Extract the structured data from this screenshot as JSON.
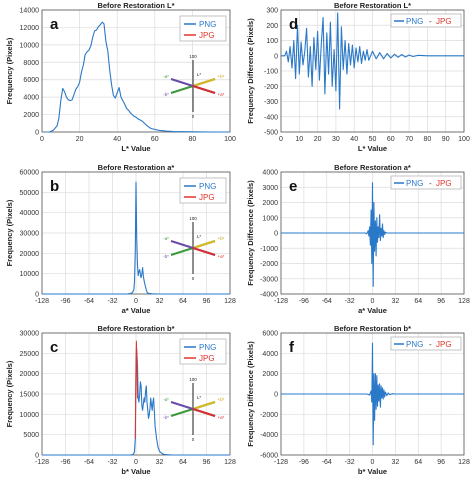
{
  "colors": {
    "png": "#2a78c8",
    "jpg": "#e0342a",
    "diff": "#2a78c8",
    "grid": "#dcdcdc",
    "frame": "#555555"
  },
  "chart_data": [
    {
      "id": "a",
      "type": "line",
      "title": "Before Restoration L*",
      "xlabel": "L* Value",
      "ylabel": "Frequency (Pixels)",
      "xlim": [
        0,
        100
      ],
      "ylim": [
        0,
        14000
      ],
      "xticks": [
        0,
        20,
        40,
        60,
        80,
        100
      ],
      "yticks": [
        0,
        2000,
        4000,
        6000,
        8000,
        10000,
        12000,
        14000
      ],
      "legend": [
        "PNG",
        "JPG"
      ],
      "legend_position": "top-right",
      "has_color_wheel": true,
      "series": [
        {
          "name": "PNG",
          "x": [
            2,
            4,
            6,
            8,
            9,
            10,
            11,
            12,
            13,
            14,
            15,
            16,
            17,
            18,
            19,
            20,
            21,
            22,
            23,
            24,
            25,
            26,
            27,
            28,
            29,
            30,
            31,
            32,
            33,
            34,
            35,
            36,
            37,
            38,
            39,
            40,
            41,
            42,
            43,
            44,
            45,
            46,
            47,
            48,
            49,
            50,
            51,
            52,
            53,
            54,
            55,
            56,
            58,
            60,
            62,
            64,
            66,
            68,
            70,
            75,
            80,
            85,
            90,
            95,
            100
          ],
          "y": [
            0,
            0,
            200,
            700,
            1600,
            3600,
            5000,
            4600,
            4000,
            3700,
            3600,
            3700,
            4300,
            4900,
            5200,
            5700,
            6900,
            7700,
            8900,
            9200,
            9400,
            9900,
            10900,
            11600,
            11700,
            12100,
            12300,
            12600,
            12400,
            10400,
            9300,
            7100,
            5400,
            4200,
            3900,
            4500,
            5100,
            4000,
            3600,
            3200,
            2700,
            2500,
            2200,
            2000,
            1800,
            1700,
            1500,
            1400,
            1300,
            1100,
            900,
            700,
            400,
            300,
            200,
            150,
            100,
            80,
            50,
            30,
            20,
            10,
            5,
            0,
            0
          ]
        }
      ]
    },
    {
      "id": "b",
      "type": "line",
      "title": "Before Restoration a*",
      "xlabel": "a* Value",
      "ylabel": "Frequency (Pixels)",
      "xlim": [
        -128,
        128
      ],
      "ylim": [
        0,
        60000
      ],
      "xticks": [
        -128,
        -96,
        -64,
        -32,
        0,
        32,
        64,
        96,
        128
      ],
      "yticks": [
        0,
        10000,
        20000,
        30000,
        40000,
        50000,
        60000
      ],
      "legend": [
        "PNG",
        "JPG"
      ],
      "legend_position": "top-right",
      "has_color_wheel": true,
      "series": [
        {
          "name": "PNG",
          "x": [
            -128,
            -20,
            -12,
            -8,
            -5,
            -3,
            -2,
            -1,
            0,
            1,
            2,
            3,
            4,
            5,
            6,
            7,
            8,
            9,
            10,
            11,
            12,
            13,
            14,
            15,
            16,
            18,
            22,
            30,
            128
          ],
          "y": [
            0,
            0,
            0,
            200,
            600,
            2000,
            6000,
            22000,
            55000,
            28000,
            14000,
            9000,
            11000,
            12000,
            9500,
            8000,
            10000,
            13000,
            9000,
            6500,
            5000,
            3500,
            2000,
            1000,
            500,
            300,
            100,
            0,
            0
          ]
        }
      ]
    },
    {
      "id": "c",
      "type": "line",
      "title": "Before Restoration b*",
      "xlabel": "b* Value",
      "ylabel": "Frequency (Pixels)",
      "xlim": [
        -128,
        128
      ],
      "ylim": [
        0,
        30000
      ],
      "xticks": [
        -128,
        -96,
        -64,
        -32,
        0,
        32,
        64,
        96,
        128
      ],
      "yticks": [
        0,
        5000,
        10000,
        15000,
        20000,
        25000,
        30000
      ],
      "legend": [
        "PNG",
        "JPG"
      ],
      "legend_position": "top-right",
      "has_color_wheel": true,
      "series": [
        {
          "name": "PNG",
          "x": [
            -128,
            -8,
            -4,
            -2,
            -1,
            0,
            1,
            2,
            3,
            4,
            5,
            6,
            7,
            8,
            9,
            10,
            11,
            12,
            13,
            14,
            15,
            16,
            17,
            18,
            19,
            20,
            21,
            22,
            23,
            24,
            25,
            26,
            28,
            30,
            32,
            36,
            40,
            50,
            128
          ],
          "y": [
            0,
            0,
            100,
            800,
            4000,
            20000,
            26000,
            22000,
            14000,
            13000,
            15000,
            18000,
            17000,
            12000,
            11000,
            12500,
            14000,
            13000,
            15500,
            17000,
            13000,
            11000,
            9000,
            9800,
            11500,
            14000,
            12500,
            11000,
            13000,
            14000,
            10500,
            7000,
            4000,
            2000,
            900,
            300,
            100,
            0,
            0
          ]
        },
        {
          "name": "JPG",
          "x": [
            -1,
            0,
            0.6,
            1.2,
            2
          ],
          "y": [
            4000,
            24000,
            28000,
            22000,
            14000
          ]
        }
      ]
    },
    {
      "id": "d",
      "type": "line",
      "title": "Before Restoration L*",
      "xlabel": "L* Value",
      "ylabel": "Frequency Difference (Pixels)",
      "xlim": [
        0,
        100
      ],
      "ylim": [
        -500,
        300
      ],
      "xticks": [
        0,
        10,
        20,
        30,
        40,
        50,
        60,
        70,
        80,
        90,
        100
      ],
      "yticks": [
        -500,
        -400,
        -300,
        -200,
        -100,
        0,
        100,
        200,
        300
      ],
      "legend": [
        "PNG",
        "-",
        "JPG"
      ],
      "legend_position": "top-right",
      "series": [
        {
          "name": "PNG - JPG",
          "x": [
            0,
            2,
            3,
            4,
            5,
            6,
            7,
            8,
            9,
            10,
            11,
            12,
            13,
            14,
            15,
            16,
            17,
            18,
            19,
            20,
            21,
            22,
            23,
            24,
            25,
            26,
            27,
            28,
            29,
            30,
            31,
            32,
            33,
            34,
            35,
            36,
            37,
            38,
            39,
            40,
            41,
            42,
            43,
            44,
            45,
            46,
            47,
            48,
            50,
            52,
            54,
            56,
            58,
            60,
            62,
            64,
            66,
            68,
            70,
            72,
            75,
            80,
            85,
            90,
            95,
            100
          ],
          "y": [
            0,
            0,
            30,
            -40,
            60,
            -80,
            100,
            -150,
            200,
            -120,
            90,
            -60,
            30,
            180,
            -140,
            60,
            -200,
            120,
            -90,
            160,
            -160,
            80,
            250,
            -250,
            150,
            -120,
            220,
            -200,
            40,
            -230,
            280,
            -350,
            190,
            -90,
            100,
            -120,
            80,
            -60,
            70,
            -80,
            50,
            -40,
            60,
            -50,
            30,
            -30,
            40,
            -30,
            30,
            -20,
            20,
            -20,
            15,
            -15,
            10,
            -10,
            8,
            -8,
            5,
            -5,
            3,
            0,
            0,
            0,
            0,
            0
          ]
        }
      ]
    },
    {
      "id": "e",
      "type": "line",
      "title": "Before Restoration a*",
      "xlabel": "a* Value",
      "ylabel": "Frequency Difference (Pixels)",
      "xlim": [
        -128,
        128
      ],
      "ylim": [
        -4000,
        4000
      ],
      "xticks": [
        -128,
        -96,
        -64,
        -32,
        0,
        32,
        64,
        96,
        128
      ],
      "yticks": [
        -4000,
        -3000,
        -2000,
        -1000,
        0,
        1000,
        2000,
        3000,
        4000
      ],
      "legend": [
        "PNG",
        "-",
        "JPG"
      ],
      "legend_position": "top-right",
      "series": [
        {
          "name": "PNG - JPG",
          "x": [
            -128,
            -10,
            -8,
            -6,
            -5,
            -4,
            -3,
            -2,
            -1,
            0,
            1,
            2,
            3,
            4,
            5,
            6,
            7,
            8,
            9,
            10,
            11,
            12,
            13,
            14,
            15,
            16,
            17,
            18,
            20,
            24,
            128
          ],
          "y": [
            0,
            0,
            -50,
            150,
            -200,
            400,
            -800,
            1500,
            -2000,
            3300,
            -3500,
            2000,
            -1200,
            800,
            -1500,
            1000,
            -600,
            400,
            -300,
            1200,
            -500,
            300,
            -200,
            600,
            -300,
            150,
            -100,
            50,
            0,
            0,
            0
          ]
        }
      ]
    },
    {
      "id": "f",
      "type": "line",
      "title": "Before Restoration b*",
      "xlabel": "b* Value",
      "ylabel": "Frequency Difference (Pixels)",
      "xlim": [
        -128,
        128
      ],
      "ylim": [
        -6000,
        6000
      ],
      "xticks": [
        -128,
        -96,
        -64,
        -32,
        0,
        32,
        64,
        96,
        128
      ],
      "yticks": [
        -6000,
        -4000,
        -2000,
        0,
        2000,
        4000,
        6000
      ],
      "legend": [
        "PNG",
        "-",
        "JPG"
      ],
      "legend_position": "top-right",
      "series": [
        {
          "name": "PNG - JPG",
          "x": [
            -128,
            -8,
            -4,
            -2,
            -1,
            0,
            1,
            2,
            3,
            4,
            5,
            6,
            7,
            8,
            9,
            10,
            11,
            12,
            13,
            14,
            15,
            16,
            17,
            18,
            20,
            22,
            24,
            28,
            32,
            40,
            128
          ],
          "y": [
            0,
            0,
            -100,
            300,
            -800,
            5000,
            -5000,
            2000,
            -2600,
            2000,
            -1500,
            1800,
            -1200,
            900,
            -700,
            1000,
            -1300,
            800,
            -400,
            600,
            -500,
            400,
            -300,
            200,
            -150,
            100,
            -60,
            30,
            0,
            0,
            0
          ]
        }
      ]
    }
  ]
}
